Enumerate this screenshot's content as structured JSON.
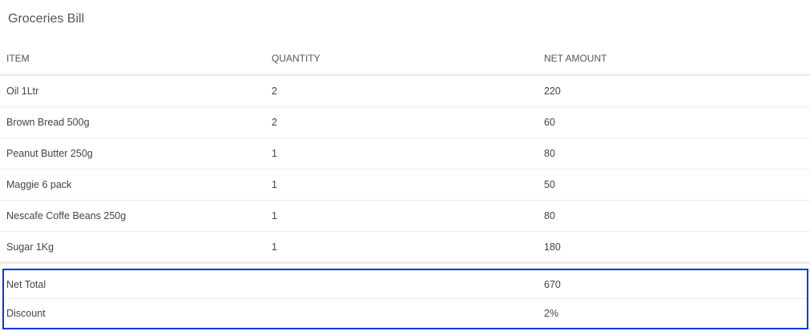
{
  "title": "Groceries Bill",
  "columns": [
    "ITEM",
    "QUANTITY",
    "NET AMOUNT"
  ],
  "rows": [
    {
      "item": "Oil 1Ltr",
      "qty": "2",
      "amount": "220"
    },
    {
      "item": "Brown Bread 500g",
      "qty": "2",
      "amount": "60"
    },
    {
      "item": "Peanut Butter 250g",
      "qty": "1",
      "amount": "80"
    },
    {
      "item": "Maggie 6 pack",
      "qty": "1",
      "amount": "50"
    },
    {
      "item": "Nescafe Coffe Beans 250g",
      "qty": "1",
      "amount": "80"
    },
    {
      "item": "Sugar 1Kg",
      "qty": "1",
      "amount": "180"
    }
  ],
  "summary": [
    {
      "label": "Net Total",
      "value": "670"
    },
    {
      "label": "Discount",
      "value": "2%"
    }
  ],
  "colors": {
    "highlight_border": "#0033ee"
  }
}
